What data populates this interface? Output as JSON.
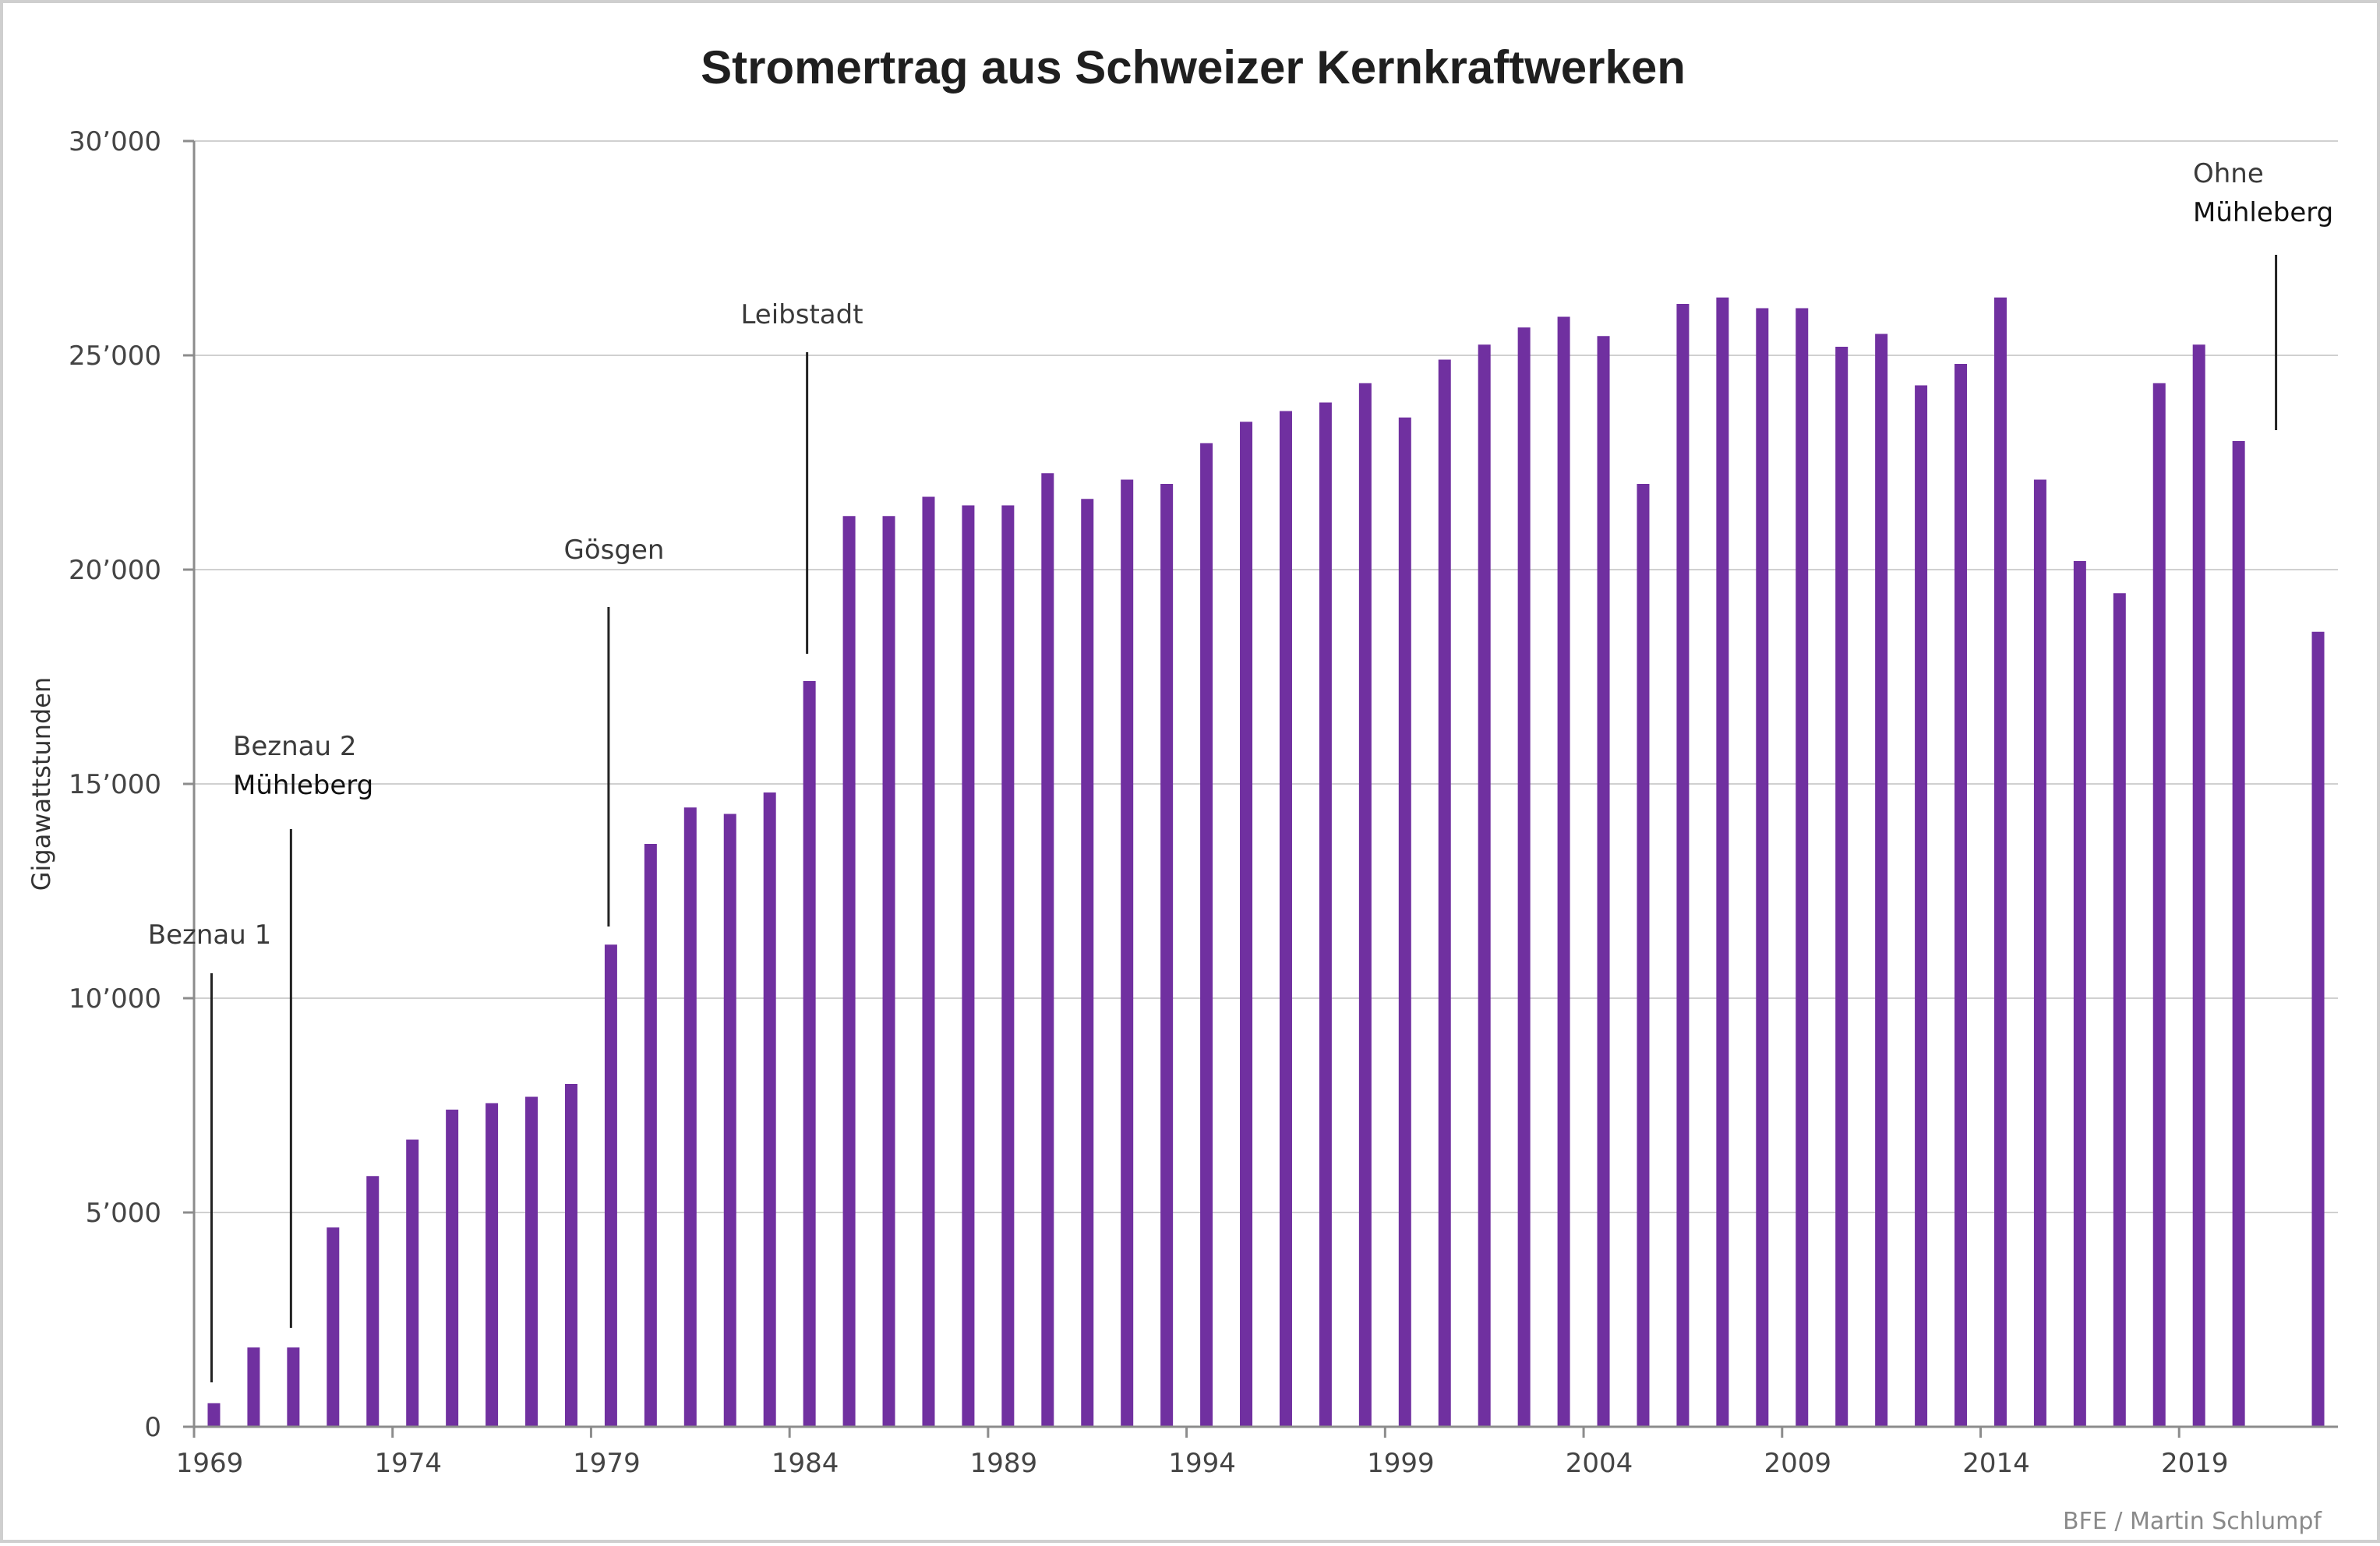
{
  "chart_data": {
    "type": "bar",
    "title": "Stromertrag aus Schweizer Kernkraftwerken",
    "ylabel": "Gigawattstunden",
    "xlabel": "",
    "ylim": [
      0,
      30000
    ],
    "y_ticks": [
      0,
      5000,
      10000,
      15000,
      20000,
      25000,
      30000
    ],
    "y_tick_labels": [
      "0",
      "5’000",
      "10’000",
      "15’000",
      "20’000",
      "25’000",
      "30’000"
    ],
    "x_tick_labels": [
      "1969",
      "1974",
      "1979",
      "1984",
      "1989",
      "1994",
      "1999",
      "2004",
      "2009",
      "2014",
      "2019"
    ],
    "grid": true,
    "bar_color": "#7030a0",
    "categories": [
      1969,
      1970,
      1971,
      1972,
      1973,
      1974,
      1975,
      1976,
      1977,
      1978,
      1979,
      1980,
      1981,
      1982,
      1983,
      1984,
      1985,
      1986,
      1987,
      1988,
      1989,
      1990,
      1991,
      1992,
      1993,
      1994,
      1995,
      1996,
      1997,
      1998,
      1999,
      2000,
      2001,
      2002,
      2003,
      2004,
      2005,
      2006,
      2007,
      2008,
      2009,
      2010,
      2011,
      2012,
      2013,
      2014,
      2015,
      2016,
      2017,
      2018,
      2019,
      2020,
      2021,
      2022
    ],
    "values": [
      550,
      1850,
      1850,
      4650,
      5850,
      6700,
      7400,
      7550,
      7700,
      8000,
      11250,
      13600,
      14450,
      14300,
      14800,
      17400,
      21250,
      21250,
      21700,
      21500,
      21500,
      22250,
      21650,
      22100,
      22000,
      22950,
      23450,
      23700,
      23900,
      24350,
      23550,
      24900,
      25250,
      25650,
      25900,
      25450,
      22000,
      26200,
      26350,
      26100,
      26100,
      25200,
      25500,
      24300,
      24800,
      26350,
      22100,
      20200,
      19450,
      24350,
      25250,
      23000,
      0,
      18550
    ],
    "annotations": [
      {
        "year": 1969,
        "lines": [
          "Beznau 1"
        ]
      },
      {
        "year": 1971,
        "lines": [
          "Beznau 2",
          "Mühleberg"
        ]
      },
      {
        "year": 1979,
        "lines": [
          "Gösgen"
        ]
      },
      {
        "year": 1984,
        "lines": [
          "Leibstadt"
        ]
      },
      {
        "year": 2021,
        "lines": [
          "Ohne",
          "Mühleberg"
        ]
      }
    ],
    "credit": "BFE / Martin Schlumpf"
  }
}
